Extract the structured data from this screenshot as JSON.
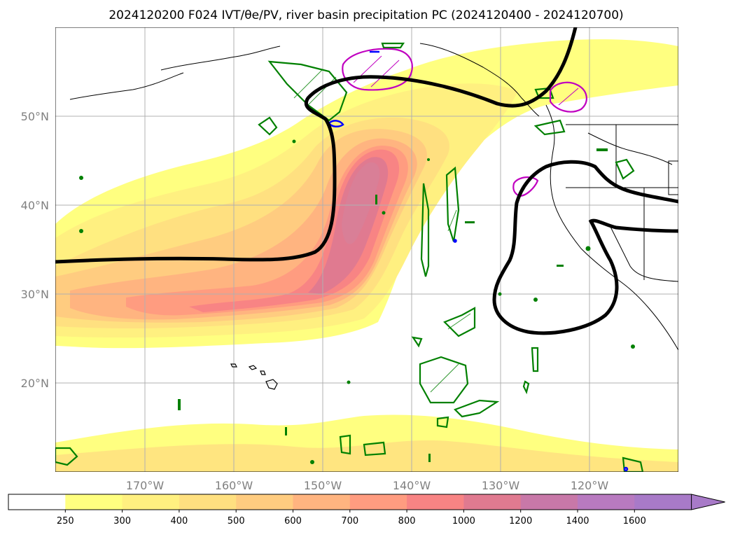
{
  "chart_data": {
    "type": "heatmap",
    "title": "2024120200 F024 IVT/θe/PV, river basin precipitation PC (2024120400 - 2024120700)",
    "map": {
      "lon_range": [
        -180,
        -110
      ],
      "lat_range": [
        10,
        60
      ],
      "grid": true,
      "x_ticks": [
        {
          "value": -170,
          "label": "170°W"
        },
        {
          "value": -160,
          "label": "160°W"
        },
        {
          "value": -150,
          "label": "150°W"
        },
        {
          "value": -140,
          "label": "140°W"
        },
        {
          "value": -130,
          "label": "130°W"
        },
        {
          "value": -120,
          "label": "120°W"
        }
      ],
      "y_ticks": [
        {
          "value": 20,
          "label": "20°N"
        },
        {
          "value": 30,
          "label": "30°N"
        },
        {
          "value": 40,
          "label": "40°N"
        },
        {
          "value": 50,
          "label": "50°N"
        }
      ]
    },
    "colorbar": {
      "levels": [
        250,
        300,
        400,
        500,
        600,
        700,
        800,
        1000,
        1200,
        1400,
        1600
      ],
      "colors": [
        "#ffffff",
        "#ffff80",
        "#fff080",
        "#ffe080",
        "#ffcc80",
        "#ffb480",
        "#ff9c80",
        "#f88484",
        "#e07a90",
        "#c878a8",
        "#b87ac0",
        "#a87ac8"
      ],
      "extend": "max"
    },
    "colors": {
      "pv_contour": "#000000",
      "precip_pc_green": "#008000",
      "precip_pc_magenta": "#c000c0",
      "blue_feature": "#0000ff",
      "grid": "#b0b0b0",
      "coast": "#000000"
    }
  }
}
